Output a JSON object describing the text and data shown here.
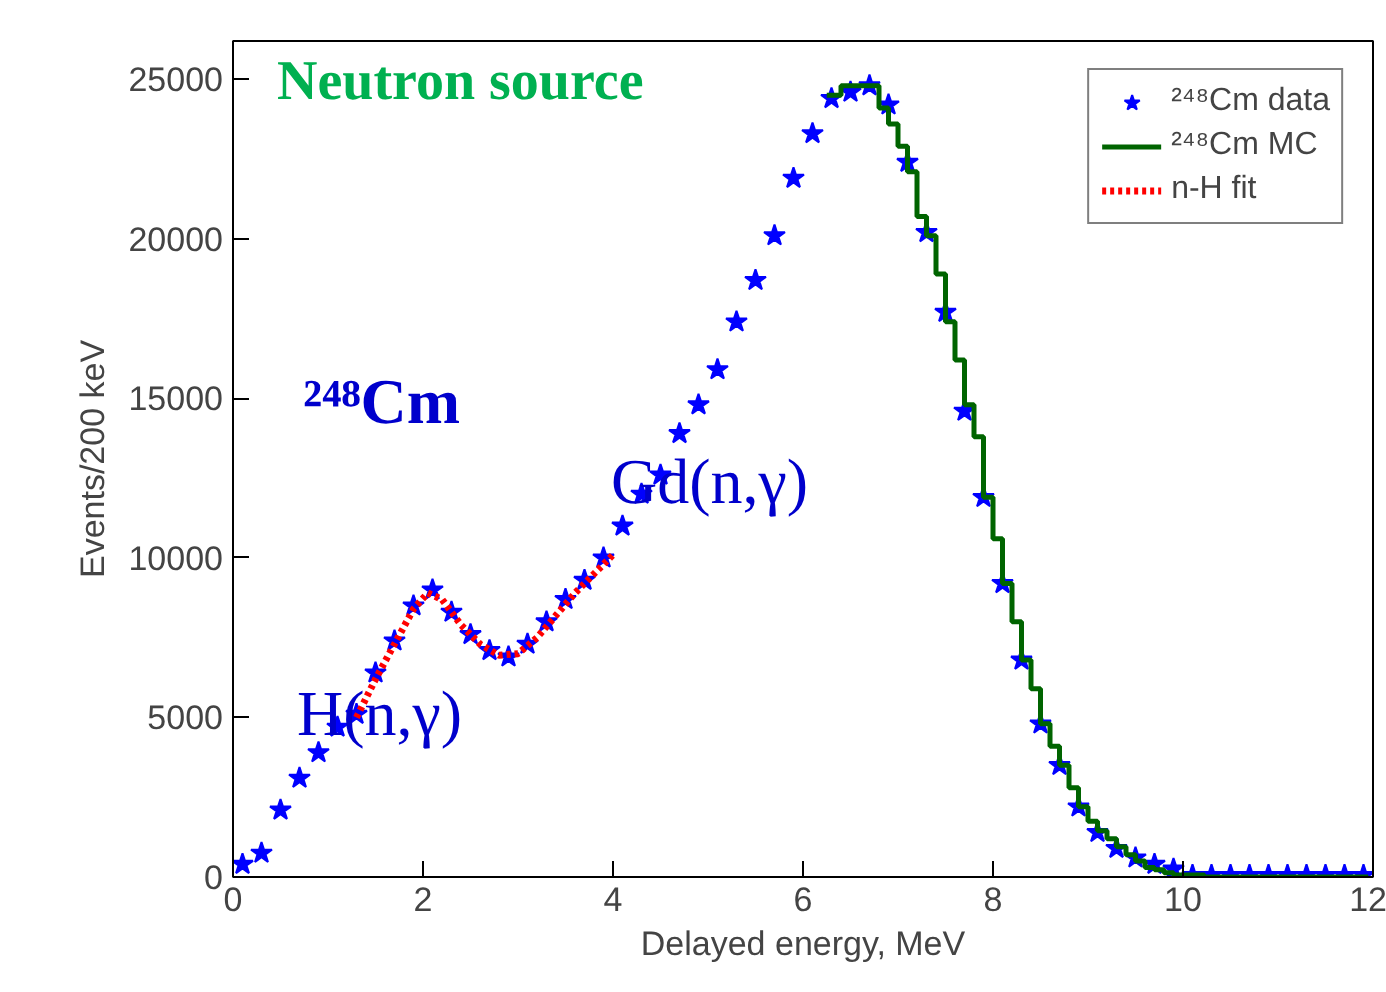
{
  "chart_data": {
    "type": "scatter",
    "xlabel": "Delayed energy, MeV",
    "ylabel": "Events/200 keV",
    "xlim": [
      0,
      12
    ],
    "ylim": [
      0,
      26200
    ],
    "xticks": [
      0,
      2,
      4,
      6,
      8,
      10,
      12
    ],
    "yticks": [
      0,
      5000,
      10000,
      15000,
      20000,
      25000
    ],
    "grid": false,
    "legend": "top right",
    "annotations": [
      "Neutron source",
      "²⁴⁸Cm",
      "Gd(n,γ)",
      "H(n,γ)"
    ],
    "series": [
      {
        "name": "²⁴⁸Cm data",
        "marker": "star",
        "color": "#0000ff",
        "x": [
          0.1,
          0.3,
          0.5,
          0.7,
          0.9,
          1.1,
          1.3,
          1.5,
          1.7,
          1.9,
          2.1,
          2.3,
          2.5,
          2.7,
          2.9,
          3.1,
          3.3,
          3.5,
          3.7,
          3.9,
          4.1,
          4.3,
          4.5,
          4.7,
          4.9,
          5.1,
          5.3,
          5.5,
          5.7,
          5.9,
          6.1,
          6.3,
          6.5,
          6.7,
          6.9,
          7.1,
          7.3,
          7.5,
          7.7,
          7.9,
          8.1,
          8.3,
          8.5,
          8.7,
          8.9,
          9.1,
          9.3,
          9.5,
          9.7,
          9.9,
          10.1,
          10.3,
          10.5,
          10.7,
          10.9,
          11.1,
          11.3,
          11.5,
          11.7,
          11.9
        ],
        "values": [
          400,
          750,
          2100,
          3100,
          3900,
          4700,
          5100,
          6400,
          7400,
          8500,
          9000,
          8300,
          7600,
          7100,
          6900,
          7300,
          8000,
          8700,
          9300,
          10000,
          11000,
          12000,
          12600,
          13900,
          14800,
          15900,
          17400,
          18700,
          20100,
          21900,
          23300,
          24400,
          24600,
          24800,
          24200,
          22400,
          20200,
          17700,
          14600,
          11900,
          9200,
          6800,
          4800,
          3500,
          2200,
          1400,
          900,
          600,
          400,
          250,
          50,
          50,
          50,
          50,
          50,
          50,
          50,
          50,
          50,
          50
        ]
      },
      {
        "name": "²⁴⁸Cm MC",
        "type": "step",
        "line_style": "solid",
        "color": "#006400",
        "x": [
          6.25,
          6.35,
          6.45,
          6.55,
          6.65,
          6.75,
          6.85,
          6.95,
          7.05,
          7.15,
          7.25,
          7.35,
          7.45,
          7.55,
          7.65,
          7.75,
          7.85,
          7.95,
          8.05,
          8.15,
          8.25,
          8.35,
          8.45,
          8.55,
          8.65,
          8.75,
          8.85,
          8.95,
          9.05,
          9.15,
          9.25,
          9.35,
          9.45,
          9.55,
          9.65,
          9.75,
          9.85,
          9.95,
          10.5,
          11.95
        ],
        "values": [
          24500,
          24500,
          24800,
          24800,
          24800,
          24800,
          24100,
          23600,
          22900,
          22100,
          20700,
          20100,
          18900,
          17400,
          16200,
          14800,
          13800,
          11900,
          10600,
          9200,
          8000,
          6800,
          5900,
          4800,
          4100,
          3500,
          2800,
          2200,
          1750,
          1450,
          1200,
          950,
          700,
          500,
          300,
          230,
          130,
          60,
          0,
          0
        ]
      },
      {
        "name": "n-H fit",
        "type": "line",
        "line_style": "dotted",
        "color": "#ff0000",
        "x": [
          1.3,
          1.5,
          1.7,
          1.9,
          2.05,
          2.2,
          2.4,
          2.6,
          2.8,
          3.0,
          3.2,
          3.4,
          3.6,
          3.8,
          4.0
        ],
        "values": [
          5000,
          6200,
          7300,
          8400,
          8900,
          8700,
          7900,
          7300,
          6950,
          7000,
          7500,
          8200,
          8900,
          9500,
          10100
        ]
      }
    ]
  }
}
